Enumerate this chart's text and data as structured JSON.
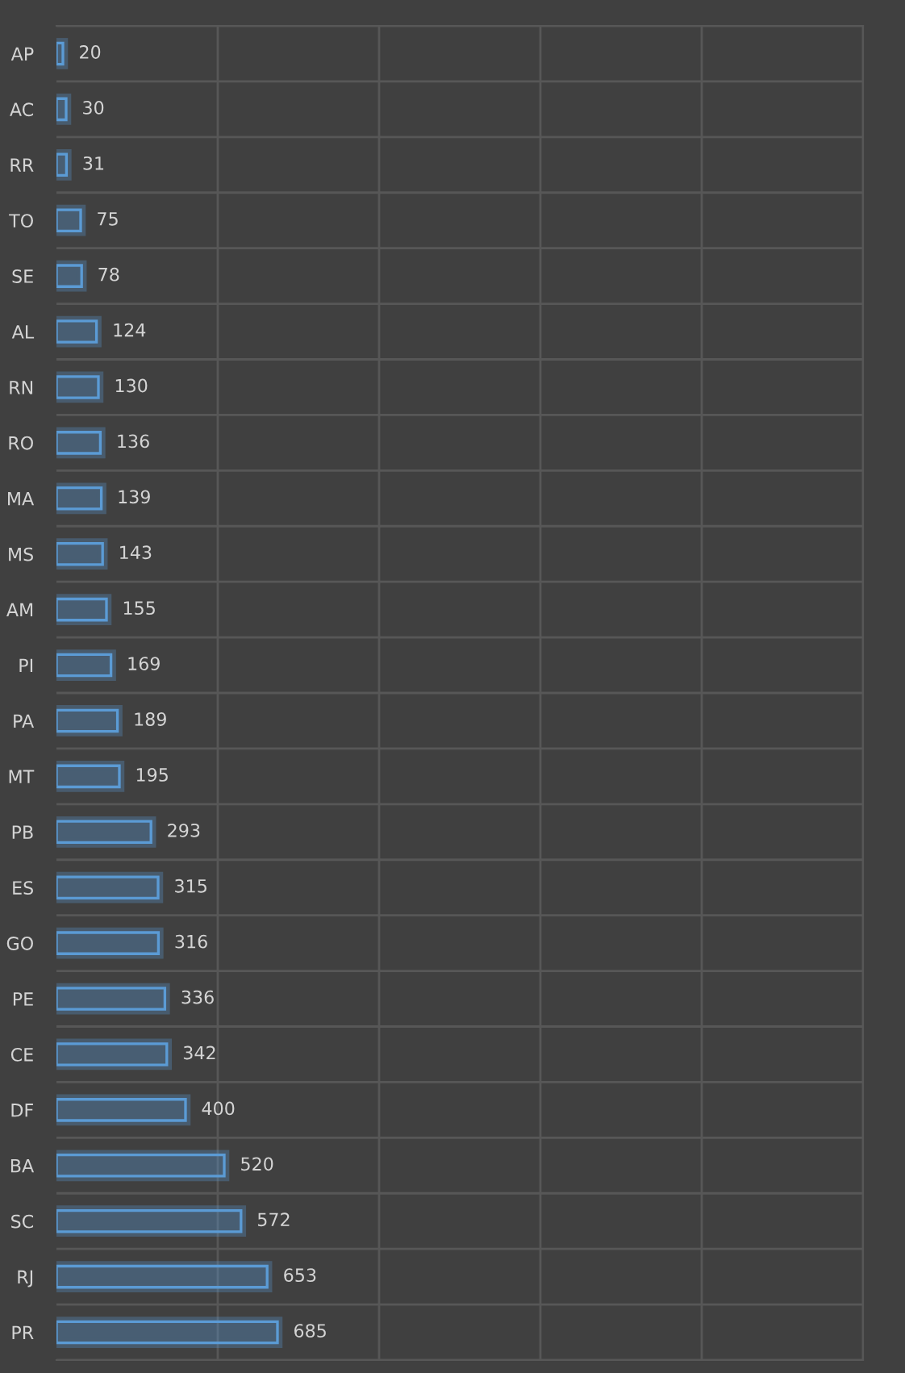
{
  "chart_data": {
    "type": "bar",
    "orientation": "horizontal",
    "categories": [
      "AP",
      "AC",
      "RR",
      "TO",
      "SE",
      "AL",
      "RN",
      "RO",
      "MA",
      "MS",
      "AM",
      "PI",
      "PA",
      "MT",
      "PB",
      "ES",
      "GO",
      "PE",
      "CE",
      "DF",
      "BA",
      "SC",
      "RJ",
      "PR"
    ],
    "values": [
      20,
      30,
      31,
      75,
      78,
      124,
      130,
      136,
      139,
      143,
      155,
      169,
      189,
      195,
      293,
      315,
      316,
      336,
      342,
      400,
      520,
      572,
      653,
      685
    ],
    "color": "#5b9bd5",
    "xlim": [
      0,
      2500
    ],
    "xticks": [
      {
        "value": 500,
        "label": null
      },
      {
        "value": 1000,
        "label": null
      },
      {
        "value": 1500,
        "label": null
      },
      {
        "value": 2000,
        "label": null
      },
      {
        "value": 2500,
        "label": null
      }
    ],
    "tick_labels": "y",
    "grid": true,
    "data_labels": true
  }
}
